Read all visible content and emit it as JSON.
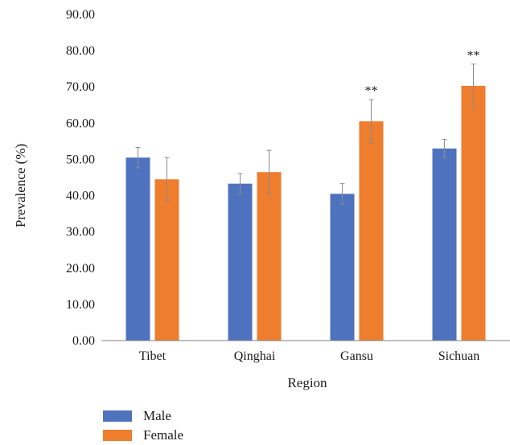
{
  "chart_data": {
    "type": "bar",
    "xlabel": "Region",
    "ylabel": "Prevalence (%)",
    "ylim": [
      0,
      90
    ],
    "yticks": [
      "0.00",
      "10.00",
      "20.00",
      "30.00",
      "40.00",
      "50.00",
      "60.00",
      "70.00",
      "80.00",
      "90.00"
    ],
    "categories": [
      "Tibet",
      "Qinghai",
      "Gansu",
      "Sichuan"
    ],
    "series": [
      {
        "name": "Male",
        "color": "#4f72be",
        "values": [
          50.5,
          43.3,
          40.5,
          53.0
        ],
        "error": [
          2.8,
          2.8,
          2.8,
          2.5
        ],
        "annotations": [
          "",
          "",
          "",
          ""
        ]
      },
      {
        "name": "Female",
        "color": "#ee7d2e",
        "values": [
          44.5,
          46.5,
          60.5,
          70.3
        ],
        "error": [
          6.0,
          6.0,
          6.0,
          6.0
        ],
        "annotations": [
          "",
          "",
          "**",
          "**"
        ]
      }
    ],
    "legend_position": "bottom-left",
    "grid": false
  }
}
